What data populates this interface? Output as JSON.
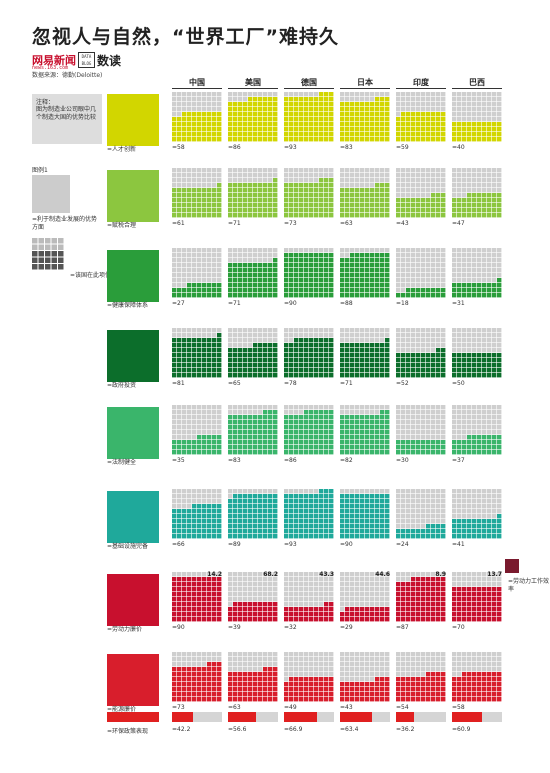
{
  "header": {
    "title": "忽视人与自然，“世界工厂”难持久",
    "brand": "网易新闻",
    "brand_sub": "news.163.com",
    "data_icon": "DATA BLOG",
    "data_label": "数读",
    "source": "数据来源：德勤(Deloitte)"
  },
  "note": {
    "title": "注释：",
    "text": "图为制造业公司眼中几个制造大国的优势比较"
  },
  "legend": {
    "title": "图例1",
    "text1": "=利于制造业发展的优势方面",
    "text2": "=该国在此项优势的得分"
  },
  "side_note": "=劳动力工作效率",
  "chart_data": {
    "type": "unit-grid",
    "title": "忽视人与自然，“世界工厂”难持久",
    "countries": [
      "中国",
      "美国",
      "德国",
      "日本",
      "印度",
      "巴西"
    ],
    "rows": [
      {
        "label": "=人才创新",
        "icon": "innovation-icon",
        "color": "#d2d600",
        "values": [
          58,
          86,
          93,
          83,
          59,
          40
        ]
      },
      {
        "label": "=赋税合理",
        "icon": "tax-icon",
        "color": "#8cc63f",
        "values": [
          61,
          71,
          73,
          63,
          43,
          47
        ]
      },
      {
        "label": "=健康保障体系",
        "icon": "health-icon",
        "color": "#2a9d3a",
        "values": [
          27,
          71,
          90,
          88,
          18,
          31
        ]
      },
      {
        "label": "=政府投资",
        "icon": "government-icon",
        "color": "#0c6e2b",
        "values": [
          81,
          65,
          78,
          71,
          52,
          50
        ]
      },
      {
        "label": "=法制健全",
        "icon": "law-icon",
        "color": "#3ab56b",
        "values": [
          35,
          83,
          86,
          82,
          30,
          37
        ]
      },
      {
        "label": "=基础设施完备",
        "icon": "infrastructure-icon",
        "color": "#1fa99b",
        "values": [
          66,
          89,
          93,
          90,
          24,
          41
        ]
      },
      {
        "label": "=劳动力廉价",
        "icon": "labor-icon",
        "color": "#c8102e",
        "values": [
          90,
          39,
          32,
          29,
          87,
          70
        ],
        "top_values": [
          "14.2",
          "68.2",
          "43.3",
          "44.6",
          "8.9",
          "13.7"
        ]
      },
      {
        "label": "=能源廉价",
        "icon": "energy-icon",
        "color": "#d81e2c",
        "values": [
          73,
          63,
          49,
          43,
          54,
          58
        ]
      }
    ],
    "env_row": {
      "label": "=环保政策表现",
      "values": [
        42.2,
        56.6,
        66.9,
        63.4,
        36.2,
        60.9
      ]
    }
  }
}
